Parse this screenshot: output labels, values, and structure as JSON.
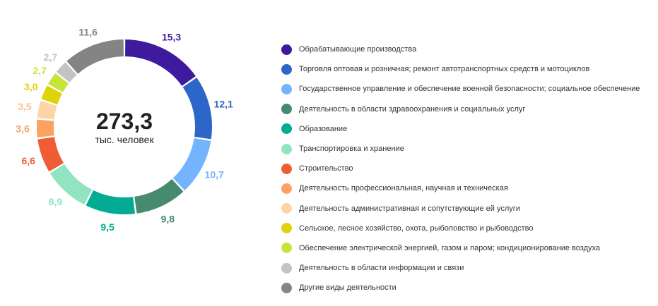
{
  "chart_data": {
    "type": "pie",
    "donut": true,
    "center_total": "273,3",
    "center_unit": "тыс. человек",
    "legend_placement": "right",
    "slices": [
      {
        "label": "Обрабатывающие производства",
        "value": 15.3,
        "value_text": "15,3",
        "color": "#3d1a9e"
      },
      {
        "label": "Торговля оптовая и розничная; ремонт автотранспортных средств и мотоциклов",
        "value": 12.1,
        "value_text": "12,1",
        "color": "#2d66c9"
      },
      {
        "label": "Государственное управление и обеспечение военной безопасности; социальное обеспечение",
        "value": 10.7,
        "value_text": "10,7",
        "color": "#74b4ff"
      },
      {
        "label": "Деятельность в области здравоохранения и социальных услуг",
        "value": 9.8,
        "value_text": "9,8",
        "color": "#468a6f"
      },
      {
        "label": "Образование",
        "value": 9.5,
        "value_text": "9,5",
        "color": "#04ab94"
      },
      {
        "label": "Транспортировка и хранение",
        "value": 8.9,
        "value_text": "8,9",
        "color": "#92e3c0"
      },
      {
        "label": "Строительство",
        "value": 6.6,
        "value_text": "6,6",
        "color": "#f05d35"
      },
      {
        "label": "Деятельность профессиональная, научная и техническая",
        "value": 3.6,
        "value_text": "3,6",
        "color": "#f9a262"
      },
      {
        "label": "Деятельность административная и сопутствующие ей услуги",
        "value": 3.5,
        "value_text": "3,5",
        "color": "#fdd4a8"
      },
      {
        "label": "Сельское, лесное хозяйство, охота, рыболовство и рыбоводство",
        "value": 3.0,
        "value_text": "3,0",
        "color": "#dfd30a"
      },
      {
        "label": "Обеспечение электрической энергией, газом и паром; кондиционирование воздуха",
        "value": 2.7,
        "value_text": "2,7",
        "color": "#c8e43a"
      },
      {
        "label": "Деятельность в области информации и связи",
        "value": 2.7,
        "value_text": "2,7",
        "color": "#c3c3c3"
      },
      {
        "label": "Другие виды деятельности",
        "value": 11.6,
        "value_text": "11,6",
        "color": "#848484"
      }
    ]
  }
}
